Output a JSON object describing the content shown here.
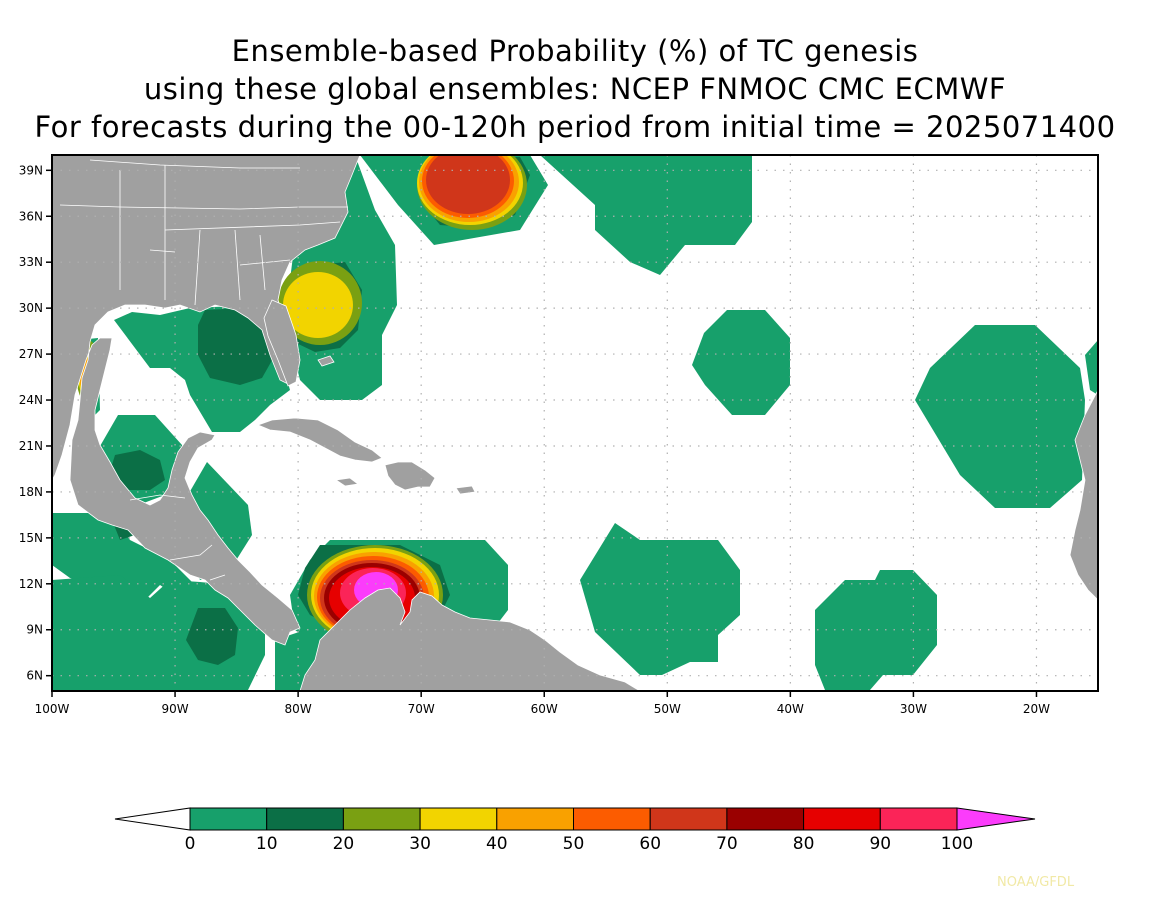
{
  "title": {
    "line1": "Ensemble-based Probability (%) of TC genesis",
    "line2": "using these global ensembles:   NCEP FNMOC CMC ECMWF",
    "line3": "For forecasts during the 00-120h period from initial time = 2025071400"
  },
  "map": {
    "lon_range": [
      -100,
      -15
    ],
    "lat_range": [
      5,
      40
    ],
    "lon_ticks": [
      {
        "value": -100,
        "label": "100W"
      },
      {
        "value": -90,
        "label": "90W"
      },
      {
        "value": -80,
        "label": "80W"
      },
      {
        "value": -70,
        "label": "70W"
      },
      {
        "value": -60,
        "label": "60W"
      },
      {
        "value": -50,
        "label": "50W"
      },
      {
        "value": -40,
        "label": "40W"
      },
      {
        "value": -30,
        "label": "30W"
      },
      {
        "value": -20,
        "label": "20W"
      }
    ],
    "lat_ticks": [
      {
        "value": 6,
        "label": "6N"
      },
      {
        "value": 9,
        "label": "9N"
      },
      {
        "value": 12,
        "label": "12N"
      },
      {
        "value": 15,
        "label": "15N"
      },
      {
        "value": 18,
        "label": "18N"
      },
      {
        "value": 21,
        "label": "21N"
      },
      {
        "value": 24,
        "label": "24N"
      },
      {
        "value": 27,
        "label": "27N"
      },
      {
        "value": 30,
        "label": "30N"
      },
      {
        "value": 33,
        "label": "33N"
      },
      {
        "value": 36,
        "label": "36N"
      },
      {
        "value": 39,
        "label": "39N"
      }
    ],
    "grid": true,
    "land_color": "#a0a0a0",
    "ocean_color": "#ffffff"
  },
  "colorbar": {
    "labels": [
      "0",
      "10",
      "20",
      "30",
      "40",
      "50",
      "60",
      "70",
      "80",
      "90",
      "100"
    ],
    "colors": [
      "#ffffff",
      "#17a06b",
      "#0b6f46",
      "#7aa012",
      "#f2d400",
      "#f9a100",
      "#fc5c00",
      "#d0361a",
      "#9a0000",
      "#e60000",
      "#fb2458",
      "#fb3cfb"
    ]
  },
  "credit": "NOAA/GFDL"
}
